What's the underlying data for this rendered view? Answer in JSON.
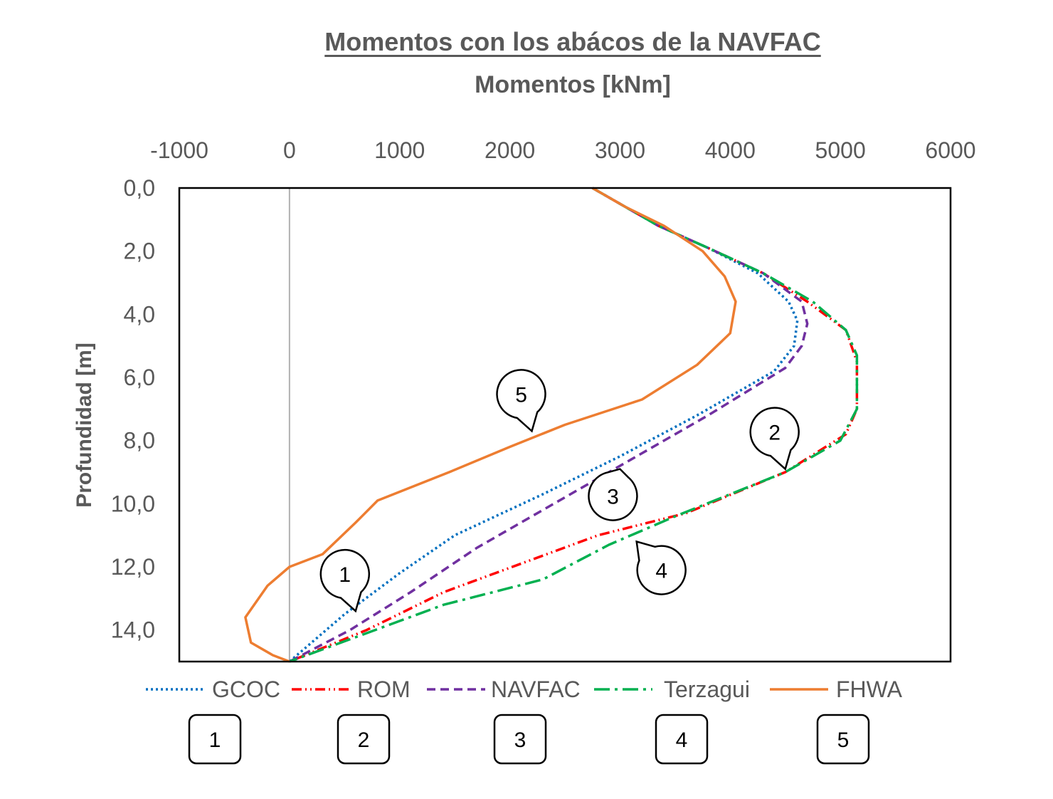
{
  "chart_data": {
    "type": "line",
    "title": "Momentos con los abácos de la NAVFAC",
    "xlabel": "Momentos [kNm]",
    "ylabel": "Profundidad [m]",
    "xlim": [
      -1000,
      6000
    ],
    "ylim": [
      0,
      15
    ],
    "y_inverted": true,
    "x_axis_position": "top",
    "x_ticks": [
      "-1000",
      "0",
      "1000",
      "2000",
      "3000",
      "4000",
      "5000",
      "6000"
    ],
    "y_ticks": [
      "0,0",
      "2,0",
      "4,0",
      "6,0",
      "8,0",
      "10,0",
      "12,0",
      "14,0"
    ],
    "legend_position": "bottom",
    "grid": false,
    "series": [
      {
        "name": "GCOC",
        "color": "#0070C0",
        "style": "dotted",
        "x": [
          2750,
          3000,
          3350,
          3800,
          4250,
          4530,
          4610,
          4580,
          4400,
          3700,
          3000,
          2300,
          1500,
          1000,
          500,
          0
        ],
        "y": [
          0,
          0.5,
          1.2,
          1.9,
          2.7,
          3.6,
          4.2,
          5.0,
          5.8,
          7.2,
          8.5,
          9.7,
          11.0,
          12.2,
          13.5,
          15.0
        ]
      },
      {
        "name": "ROM",
        "color": "#FF0000",
        "style": "dash-dot-dot",
        "x": [
          2750,
          3000,
          3350,
          3800,
          4300,
          4700,
          5050,
          5150,
          5150,
          5050,
          4500,
          3600,
          2800,
          1400,
          700,
          0
        ],
        "y": [
          0,
          0.5,
          1.2,
          1.9,
          2.7,
          3.6,
          4.5,
          5.5,
          7.0,
          7.8,
          9.0,
          10.3,
          11.0,
          12.8,
          14.0,
          15.0
        ]
      },
      {
        "name": "NAVFAC",
        "color": "#7030A0",
        "style": "dashed",
        "x": [
          2750,
          3000,
          3350,
          3800,
          4300,
          4650,
          4700,
          4650,
          4500,
          3800,
          3100,
          2400,
          1700,
          1100,
          550,
          0
        ],
        "y": [
          0,
          0.5,
          1.2,
          1.9,
          2.7,
          3.6,
          4.3,
          5.0,
          5.7,
          7.2,
          8.6,
          10.0,
          11.4,
          12.8,
          14.0,
          15.0
        ]
      },
      {
        "name": "Terzagui",
        "color": "#00B050",
        "style": "long-dash-dot",
        "x": [
          2750,
          3000,
          3350,
          3800,
          4300,
          4750,
          5050,
          5150,
          5150,
          5000,
          4500,
          3500,
          2900,
          2300,
          1400,
          700,
          0
        ],
        "y": [
          0,
          0.5,
          1.2,
          1.9,
          2.7,
          3.6,
          4.5,
          5.3,
          7.0,
          8.0,
          9.0,
          10.4,
          11.3,
          12.4,
          13.2,
          14.1,
          15.0
        ]
      },
      {
        "name": "FHWA",
        "color": "#ED7D31",
        "style": "solid",
        "x": [
          2750,
          3050,
          3400,
          3750,
          3950,
          4050,
          4000,
          3700,
          3200,
          2500,
          2000,
          1450,
          800,
          600,
          300,
          0,
          -200,
          -400,
          -350,
          -150,
          0
        ],
        "y": [
          0,
          0.6,
          1.2,
          2.0,
          2.8,
          3.6,
          4.6,
          5.6,
          6.7,
          7.5,
          8.2,
          9.0,
          9.9,
          10.6,
          11.6,
          12.0,
          12.6,
          13.6,
          14.4,
          14.8,
          15.0
        ]
      }
    ],
    "callouts": [
      {
        "label": "1",
        "series": "GCOC",
        "x": 600,
        "y": 13.4
      },
      {
        "label": "2",
        "series": "ROM",
        "x": 4500,
        "y": 8.9
      },
      {
        "label": "3",
        "series": "NAVFAC",
        "x": 3000,
        "y": 8.9
      },
      {
        "label": "4",
        "series": "Terzagui",
        "x": 3150,
        "y": 11.2
      },
      {
        "label": "5",
        "series": "FHWA",
        "x": 2200,
        "y": 7.7
      }
    ],
    "number_boxes": [
      "1",
      "2",
      "3",
      "4",
      "5"
    ]
  }
}
